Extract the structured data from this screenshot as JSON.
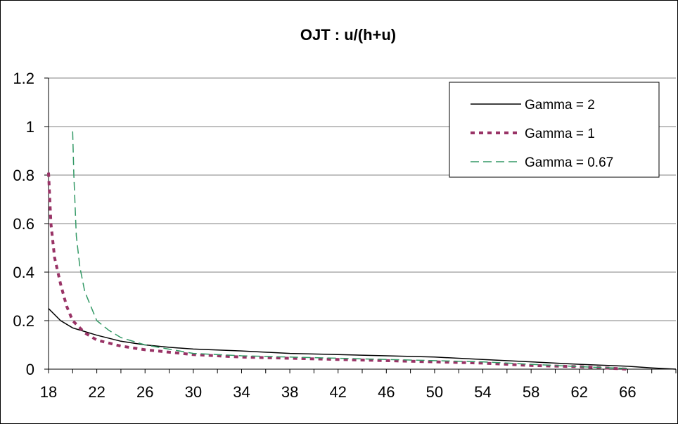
{
  "chart_data": {
    "type": "line",
    "title": "OJT :  u/(h+u)",
    "xlabel": "",
    "ylabel": "",
    "xlim": [
      18,
      70
    ],
    "ylim": [
      0,
      1.2
    ],
    "x_ticks": [
      "18",
      "22",
      "26",
      "30",
      "34",
      "38",
      "42",
      "46",
      "50",
      "54",
      "58",
      "62",
      "66"
    ],
    "y_ticks": [
      "0",
      "0.2",
      "0.4",
      "0.6",
      "0.8",
      "1",
      "1.2"
    ],
    "grid": "horizontal",
    "legend_position": "top-right",
    "series": [
      {
        "name": "Gamma = 2",
        "color": "#000000",
        "style": "solid",
        "x": [
          18,
          19,
          20,
          21,
          22,
          24,
          26,
          28,
          30,
          34,
          38,
          42,
          46,
          50,
          54,
          58,
          62,
          66,
          68,
          70
        ],
        "y": [
          0.25,
          0.2,
          0.17,
          0.155,
          0.14,
          0.115,
          0.1,
          0.09,
          0.083,
          0.075,
          0.065,
          0.06,
          0.055,
          0.05,
          0.04,
          0.03,
          0.02,
          0.012,
          0.005,
          0.0
        ]
      },
      {
        "name": "Gamma = 1",
        "color": "#993366",
        "style": "dotted",
        "x": [
          18,
          18.2,
          18.5,
          19,
          19.5,
          20,
          21,
          22,
          24,
          26,
          30,
          34,
          38,
          42,
          46,
          50,
          54,
          58,
          62,
          66
        ],
        "y": [
          0.81,
          0.6,
          0.46,
          0.35,
          0.26,
          0.2,
          0.15,
          0.12,
          0.095,
          0.08,
          0.06,
          0.05,
          0.045,
          0.04,
          0.035,
          0.03,
          0.025,
          0.015,
          0.01,
          0.0
        ]
      },
      {
        "name": "Gamma = 0.67",
        "color": "#339966",
        "style": "dashed",
        "x": [
          20,
          20.1,
          20.3,
          20.6,
          21,
          21.5,
          22,
          23,
          24,
          26,
          30,
          34,
          38,
          42,
          46,
          50,
          54,
          58,
          62,
          66
        ],
        "y": [
          0.98,
          0.8,
          0.55,
          0.42,
          0.32,
          0.26,
          0.2,
          0.16,
          0.13,
          0.1,
          0.065,
          0.055,
          0.05,
          0.045,
          0.04,
          0.035,
          0.03,
          0.02,
          0.01,
          0.003
        ]
      }
    ]
  }
}
